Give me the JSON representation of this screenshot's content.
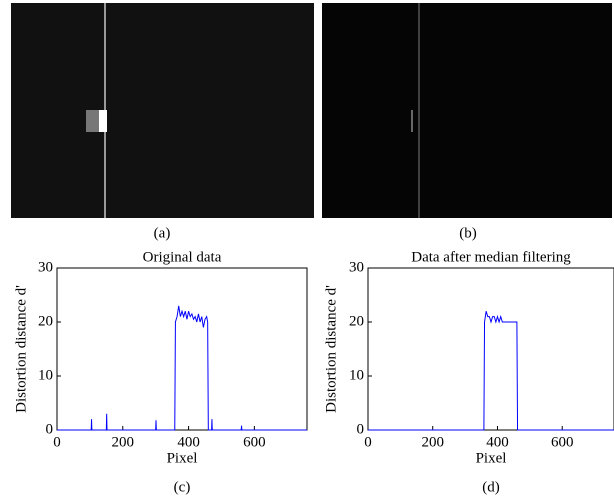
{
  "images": [
    {
      "caption": "(a)"
    },
    {
      "caption": "(b)"
    }
  ],
  "chart_data": [
    {
      "type": "line",
      "title": "Original data",
      "x_label": "Pixel",
      "y_label": "Distortion distance d'",
      "caption": "(c)",
      "xlim": [
        0,
        760
      ],
      "xticks": [
        0,
        200,
        400,
        600
      ],
      "ylim": [
        0,
        30
      ],
      "yticks": [
        0,
        10,
        20,
        30
      ],
      "series": [
        {
          "color": "#0000ff",
          "x": [
            0,
            104,
            105,
            106,
            150,
            151,
            152,
            300,
            301,
            302,
            358,
            360,
            365,
            370,
            375,
            380,
            385,
            390,
            395,
            400,
            405,
            410,
            415,
            420,
            425,
            430,
            435,
            440,
            445,
            450,
            455,
            458,
            460,
            462,
            470,
            471,
            472,
            560,
            561,
            562,
            760
          ],
          "values": [
            0,
            0,
            2,
            0,
            0,
            3,
            0,
            0,
            1.8,
            0,
            0,
            20,
            21,
            23,
            21,
            22,
            21,
            22,
            20.5,
            22,
            21,
            21.5,
            20.5,
            21,
            20,
            21.5,
            20,
            21,
            19,
            20.5,
            21,
            20,
            0,
            0,
            0,
            2,
            0,
            0,
            0.8,
            0,
            0
          ]
        }
      ]
    },
    {
      "type": "line",
      "title": "Data after median filtering",
      "x_label": "Pixel",
      "y_label": "Distortion distance d'",
      "caption": "(d)",
      "xlim": [
        0,
        760
      ],
      "xticks": [
        0,
        200,
        400,
        600
      ],
      "ylim": [
        0,
        30
      ],
      "yticks": [
        0,
        10,
        20,
        30
      ],
      "series": [
        {
          "color": "#0000ff",
          "x": [
            0,
            358,
            360,
            365,
            370,
            375,
            380,
            385,
            390,
            395,
            400,
            405,
            410,
            415,
            420,
            460,
            462,
            760
          ],
          "values": [
            0,
            0,
            20,
            22,
            21,
            21,
            20,
            21,
            21,
            20,
            21,
            20,
            21,
            20,
            20,
            20,
            0,
            0
          ]
        }
      ]
    }
  ]
}
